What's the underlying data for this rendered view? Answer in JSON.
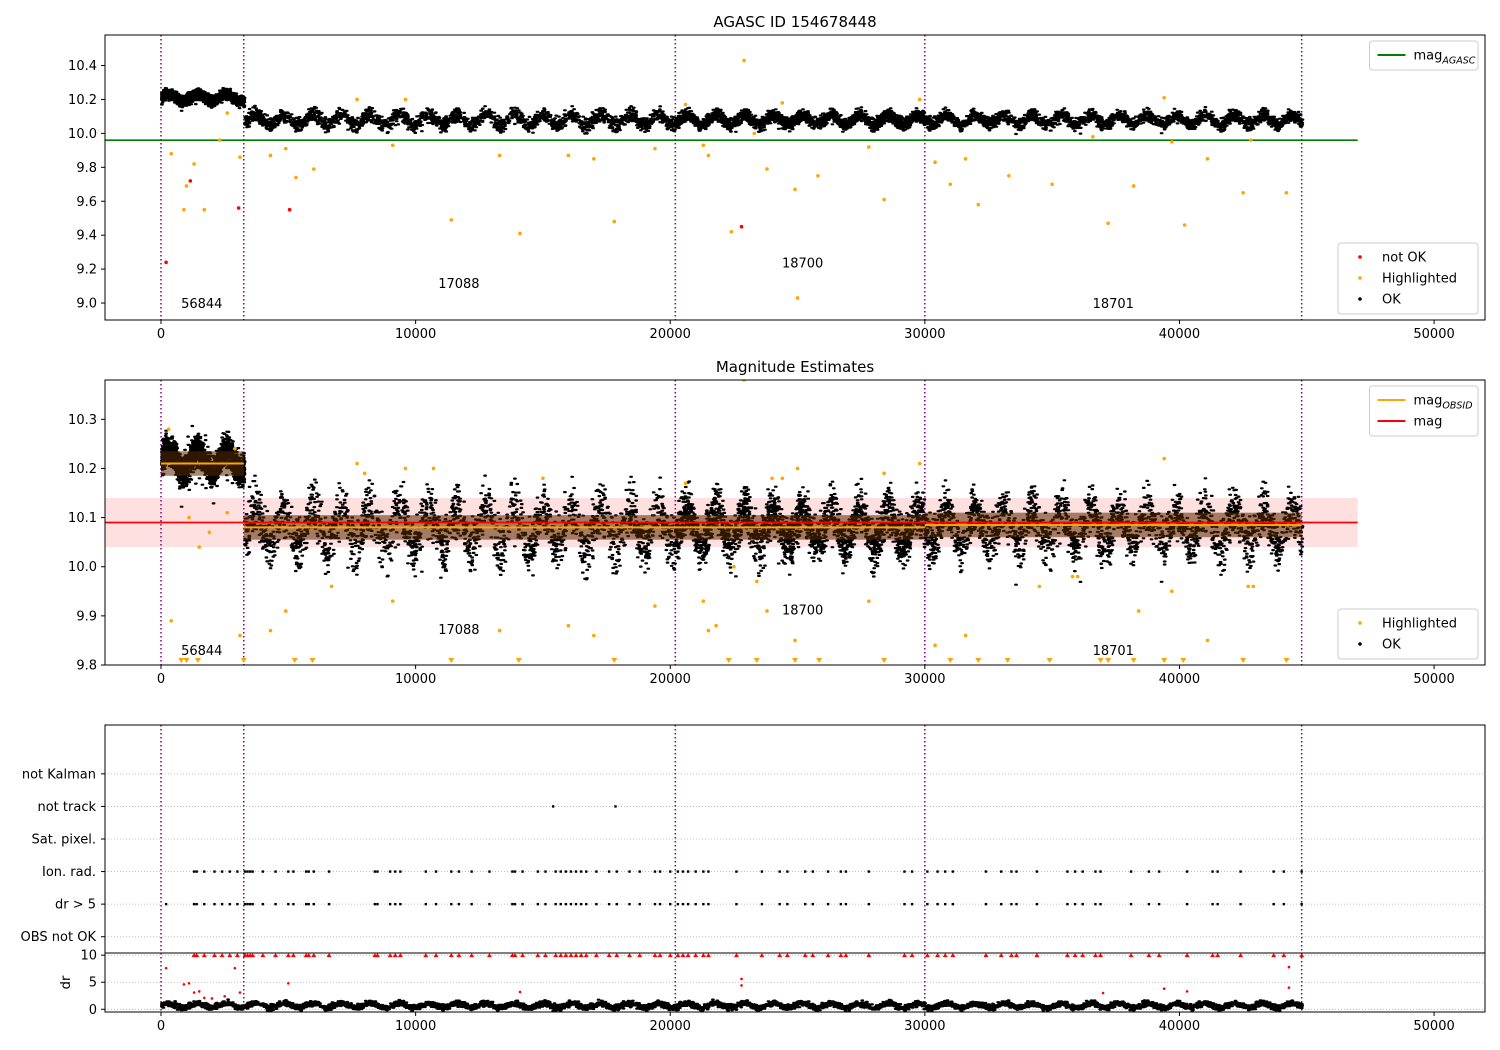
{
  "chart_data": [
    {
      "type": "scatter",
      "title": "AGASC ID 154678448",
      "xlabel": "",
      "ylabel": "",
      "xlim": [
        -2200,
        52000
      ],
      "ylim": [
        8.9,
        10.58
      ],
      "x_ticks": [
        0,
        10000,
        20000,
        30000,
        40000,
        50000
      ],
      "y_ticks": [
        9.0,
        9.2,
        9.4,
        9.6,
        9.8,
        10.0,
        10.2,
        10.4
      ],
      "y_tick_format": 1,
      "obs_boundaries": [
        0,
        3250,
        20200,
        30000,
        44800
      ],
      "obsid_labels": [
        {
          "text": "56844",
          "x": 1600,
          "y": 8.97
        },
        {
          "text": "17088",
          "x": 11700,
          "y": 9.09
        },
        {
          "text": "18700",
          "x": 25200,
          "y": 9.21
        },
        {
          "text": "18701",
          "x": 37400,
          "y": 8.97
        }
      ],
      "reference_lines": [
        {
          "name": "mag_AGASC",
          "value": 9.96,
          "x_range": [
            -2200,
            47000
          ],
          "color": "#008000"
        }
      ],
      "legends": [
        {
          "position": "top-right",
          "entries": [
            {
              "label": "mag",
              "sub": "AGASC",
              "marker": "line",
              "color": "#008000"
            }
          ]
        },
        {
          "position": "bottom-right",
          "entries": [
            {
              "label": "not OK",
              "marker": "dot",
              "color": "#ff0000"
            },
            {
              "label": "Highlighted",
              "marker": "dot",
              "color": "#ffa500"
            },
            {
              "label": "OK",
              "marker": "dot",
              "color": "#000000"
            }
          ]
        }
      ],
      "ok_series": {
        "name": "OK",
        "color": "#000000",
        "segments": [
          {
            "x": [
              0,
              3250
            ],
            "mean": 10.21,
            "halfwidth": 0.05
          },
          {
            "x": [
              3250,
              20200
            ],
            "mean": 10.08,
            "halfwidth": 0.07
          },
          {
            "x": [
              20200,
              30000
            ],
            "mean": 10.08,
            "halfwidth": 0.06
          },
          {
            "x": [
              30000,
              44800
            ],
            "mean": 10.08,
            "halfwidth": 0.06
          }
        ]
      },
      "highlighted_points": {
        "name": "Highlighted",
        "color": "#ffa500",
        "x": [
          400,
          900,
          1000,
          1300,
          1700,
          2300,
          2600,
          3100,
          4300,
          4900,
          5300,
          6000,
          7700,
          9100,
          9600,
          11400,
          13300,
          14100,
          16000,
          17000,
          17800,
          19400,
          20600,
          21300,
          21500,
          22400,
          22900,
          23300,
          23800,
          24400,
          24900,
          25000,
          25800,
          27800,
          28400,
          29800,
          30400,
          31000,
          31600,
          32100,
          33300,
          35000,
          36600,
          37200,
          38200,
          39400,
          39700,
          40200,
          41100,
          42500,
          42800,
          44200
        ],
        "y": [
          9.88,
          9.55,
          9.69,
          9.82,
          9.55,
          9.96,
          10.12,
          9.86,
          9.87,
          9.91,
          9.74,
          9.79,
          10.2,
          9.93,
          10.2,
          9.49,
          9.87,
          9.41,
          9.87,
          9.85,
          9.48,
          9.91,
          10.17,
          9.93,
          9.87,
          9.42,
          10.43,
          10.0,
          9.79,
          10.18,
          9.67,
          9.03,
          9.75,
          9.92,
          9.61,
          10.2,
          9.83,
          9.7,
          9.85,
          9.58,
          9.75,
          9.7,
          9.98,
          9.47,
          9.69,
          10.21,
          9.95,
          9.46,
          9.85,
          9.65,
          9.96,
          9.65
        ]
      },
      "not_ok_points": {
        "name": "not OK",
        "color": "#ff0000",
        "x": [
          200,
          1150,
          3050,
          5050,
          22800
        ],
        "y": [
          9.24,
          9.72,
          9.56,
          9.55,
          9.45
        ]
      }
    },
    {
      "type": "scatter",
      "title": "Magnitude Estimates",
      "xlabel": "",
      "ylabel": "",
      "xlim": [
        -2200,
        52000
      ],
      "ylim": [
        9.8,
        10.38
      ],
      "x_ticks": [
        0,
        10000,
        20000,
        30000,
        40000,
        50000
      ],
      "y_ticks": [
        9.8,
        9.9,
        10.0,
        10.1,
        10.2,
        10.3
      ],
      "y_tick_format": 1,
      "obs_boundaries": [
        0,
        3250,
        20200,
        30000,
        44800
      ],
      "obsid_labels": [
        {
          "text": "56844",
          "x": 1600,
          "y": 9.82
        },
        {
          "text": "17088",
          "x": 11700,
          "y": 9.863
        },
        {
          "text": "18700",
          "x": 25200,
          "y": 9.903
        },
        {
          "text": "18701",
          "x": 37400,
          "y": 9.82
        }
      ],
      "mag_band": {
        "mean": 10.09,
        "lower": 10.04,
        "upper": 10.14,
        "x_range": [
          -2200,
          47000
        ],
        "color": "#ff0000"
      },
      "obsid_mags": [
        {
          "x": [
            0,
            3250
          ],
          "mag": 10.21
        },
        {
          "x": [
            3250,
            20200
          ],
          "mag": 10.08
        },
        {
          "x": [
            20200,
            30000
          ],
          "mag": 10.08
        },
        {
          "x": [
            30000,
            44800
          ],
          "mag": 10.085
        }
      ],
      "legends": [
        {
          "position": "top-right",
          "entries": [
            {
              "label": "mag",
              "sub": "OBSID",
              "marker": "line",
              "color": "#ffa500"
            },
            {
              "label": "mag",
              "marker": "line",
              "color": "#ff0000"
            }
          ]
        },
        {
          "position": "bottom-right",
          "entries": [
            {
              "label": "Highlighted",
              "marker": "dot",
              "color": "#ffa500"
            },
            {
              "label": "OK",
              "marker": "dot",
              "color": "#000000"
            }
          ]
        }
      ],
      "ok_series": {
        "name": "OK",
        "color": "#000000",
        "segments": [
          {
            "x": [
              0,
              3250
            ],
            "mean": 10.215,
            "halfwidth": 0.05
          },
          {
            "x": [
              3250,
              20200
            ],
            "mean": 10.08,
            "halfwidth": 0.09
          },
          {
            "x": [
              20200,
              30000
            ],
            "mean": 10.08,
            "halfwidth": 0.08
          },
          {
            "x": [
              30000,
              44800
            ],
            "mean": 10.08,
            "halfwidth": 0.08
          }
        ]
      },
      "highlighted_points": {
        "name": "Highlighted",
        "color": "#ffa500",
        "x": [
          300,
          400,
          1100,
          1500,
          1900,
          2600,
          2900,
          3100,
          4300,
          4900,
          6700,
          7700,
          8000,
          9100,
          9600,
          10700,
          13300,
          15000,
          16000,
          17000,
          19400,
          20600,
          21300,
          21500,
          21800,
          22500,
          22900,
          23400,
          23800,
          24000,
          24400,
          24900,
          25000,
          27800,
          28400,
          29800,
          30400,
          31600,
          34500,
          35800,
          36000,
          38400,
          39400,
          39700,
          41100,
          42700,
          42900
        ],
        "y": [
          10.28,
          9.89,
          10.1,
          10.04,
          10.07,
          10.11,
          10.24,
          9.86,
          9.87,
          9.91,
          9.96,
          10.21,
          10.19,
          9.93,
          10.2,
          10.2,
          9.87,
          10.18,
          9.88,
          9.86,
          9.92,
          10.17,
          9.93,
          9.87,
          9.88,
          10.0,
          10.38,
          9.97,
          9.91,
          10.18,
          10.18,
          9.85,
          10.2,
          9.93,
          10.19,
          10.21,
          9.84,
          9.86,
          9.96,
          9.98,
          9.98,
          9.91,
          10.22,
          9.95,
          9.85,
          9.96,
          9.96
        ]
      },
      "below_range_markers": {
        "name": "Highlighted (below range)",
        "color": "#ffa500",
        "x": [
          800,
          1000,
          1450,
          3250,
          5250,
          5950,
          11400,
          14050,
          17800,
          22300,
          23400,
          24900,
          25850,
          28400,
          31000,
          32100,
          33250,
          34900,
          36900,
          37200,
          38200,
          39400,
          40150,
          42500,
          44200
        ]
      }
    },
    {
      "type": "scatter",
      "title": "",
      "xlabel": "",
      "ylabel": "",
      "xlim": [
        -2200,
        52000
      ],
      "ylim": [
        -0.5,
        6.5
      ],
      "categories": [
        "OBS not OK",
        "dr > 5",
        "Ion. rad.",
        "Sat. pixel.",
        "not track",
        "not Kalman"
      ],
      "obs_boundaries": [
        0,
        3250,
        20200,
        30000,
        44800
      ],
      "flag_points": {
        "not track": [
          15400,
          17850
        ],
        "Ion. rad.": [
          1300,
          1400,
          1700,
          2100,
          2400,
          2700,
          3000,
          3300,
          3400,
          3500,
          3600,
          4000,
          4500,
          5000,
          5200,
          5700,
          5800,
          6000,
          6600,
          8400,
          8500,
          9000,
          9200,
          9400,
          10400,
          10800,
          11400,
          11700,
          12200,
          12900,
          13800,
          13900,
          14200,
          14800,
          15100,
          15500,
          15700,
          15900,
          16100,
          16300,
          16500,
          16700,
          17100,
          17600,
          17900,
          18400,
          18800,
          19400,
          19600,
          20000,
          20300,
          20500,
          20700,
          21000,
          21300,
          21500,
          22600,
          23600,
          24300,
          24600,
          25300,
          25600,
          26200,
          26700,
          26900,
          27800,
          29200,
          29500,
          30100,
          30500,
          30800,
          31100,
          32400,
          33000,
          33400,
          33600,
          34400,
          35600,
          35900,
          36200,
          36700,
          36900,
          38100,
          38800,
          39200,
          40300,
          41300,
          41500,
          42400,
          43700,
          44100,
          44800
        ],
        "dr > 5": [
          200,
          1300,
          1400,
          1700,
          2100,
          2400,
          2700,
          3000,
          3300,
          3400,
          3500,
          3600,
          4000,
          4500,
          5000,
          5200,
          5700,
          5800,
          6000,
          6600,
          8400,
          8500,
          9000,
          9200,
          9400,
          10400,
          10800,
          11400,
          11700,
          12200,
          12900,
          13800,
          13900,
          14200,
          14800,
          15100,
          15500,
          15700,
          15900,
          16100,
          16300,
          16500,
          16700,
          17100,
          17600,
          17900,
          18400,
          18800,
          19400,
          19600,
          20000,
          20300,
          20500,
          20700,
          21000,
          21300,
          21500,
          22600,
          23600,
          24300,
          24600,
          25300,
          25600,
          26200,
          26700,
          26900,
          27800,
          29200,
          29500,
          30100,
          30500,
          30800,
          31100,
          32400,
          33000,
          33400,
          33600,
          34400,
          35600,
          35900,
          36200,
          36700,
          36900,
          38100,
          38800,
          39200,
          40300,
          41300,
          41500,
          42400,
          43700,
          44100,
          44800
        ]
      }
    },
    {
      "type": "scatter",
      "title": "",
      "xlabel": "",
      "ylabel": "dr",
      "xlim": [
        -2200,
        52000
      ],
      "ylim": [
        -0.5,
        10.4
      ],
      "y_ticks": [
        0,
        5,
        10
      ],
      "y_tick_format": 0,
      "obs_boundaries": [
        0,
        3250,
        20200,
        30000,
        44800
      ],
      "ok_series": {
        "name": "dr",
        "color": "#000000",
        "segments": [
          {
            "x": [
              0,
              44800
            ],
            "mean": 0.7,
            "halfwidth": 0.9
          }
        ]
      },
      "red_points": {
        "name": "dr > 5 (clipped)",
        "color": "#ff0000",
        "x": [
          200,
          900,
          1100,
          1300,
          1500,
          1700,
          2000,
          2500,
          2900,
          3100,
          5000,
          14100,
          22800,
          22800,
          37000,
          39400,
          40300,
          44300,
          44300
        ],
        "y": [
          7.6,
          4.6,
          4.8,
          3.1,
          3.3,
          2.1,
          2.0,
          2.4,
          7.6,
          3.1,
          4.8,
          3.2,
          5.6,
          4.4,
          3.0,
          3.8,
          3.3,
          7.8,
          4.0
        ]
      },
      "red_top_x": [
        1300,
        1400,
        1700,
        2100,
        2400,
        2700,
        3000,
        3300,
        3400,
        3500,
        3600,
        4000,
        4500,
        5000,
        5200,
        5700,
        5800,
        6000,
        6600,
        8400,
        8500,
        9000,
        9200,
        9400,
        10400,
        10800,
        11400,
        11700,
        12200,
        12900,
        13800,
        13900,
        14200,
        14800,
        15100,
        15500,
        15700,
        15900,
        16100,
        16300,
        16500,
        16700,
        17100,
        17600,
        17900,
        18400,
        18800,
        19400,
        19600,
        20000,
        20300,
        20500,
        20700,
        21000,
        21300,
        21500,
        22600,
        23600,
        24300,
        24600,
        25300,
        25600,
        26200,
        26700,
        26900,
        27800,
        29200,
        29500,
        30100,
        30500,
        30800,
        31100,
        32400,
        33000,
        33400,
        33600,
        34400,
        35600,
        35900,
        36200,
        36700,
        36900,
        38100,
        38800,
        39200,
        40300,
        41300,
        41500,
        42400,
        43700,
        44100,
        44800
      ],
      "red_top_value": 10,
      "x_ticks": [
        0,
        10000,
        20000,
        30000,
        40000,
        50000
      ]
    }
  ]
}
